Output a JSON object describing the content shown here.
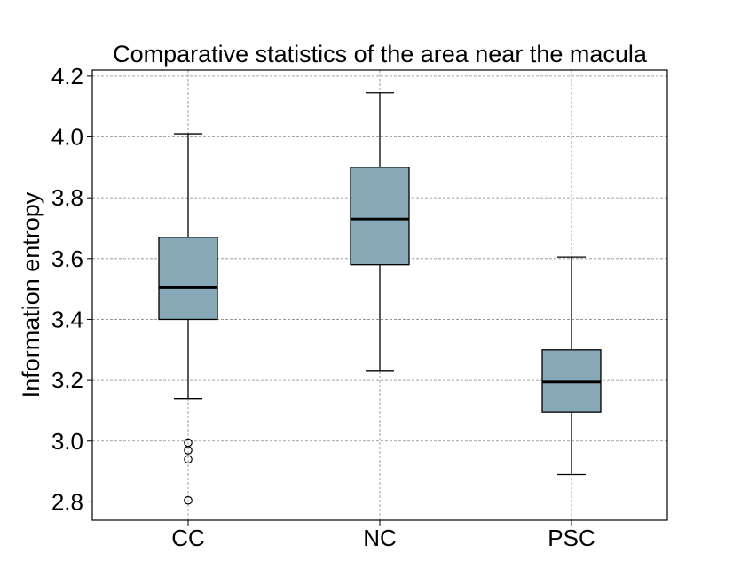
{
  "chart_data": {
    "type": "box",
    "title": "Comparative statistics of the area near the macula",
    "xlabel": "",
    "ylabel": "Information entropy",
    "ylim": [
      2.74,
      4.22
    ],
    "yticks": [
      "2.8",
      "3.0",
      "3.2",
      "3.4",
      "3.6",
      "3.8",
      "4.0",
      "4.2"
    ],
    "categories": [
      "CC",
      "NC",
      "PSC"
    ],
    "grid": true,
    "box_color": "#87a8b6",
    "boxes": [
      {
        "category": "CC",
        "whisker_low": 3.14,
        "q1": 3.4,
        "median": 3.505,
        "q3": 3.67,
        "whisker_high": 4.01,
        "outliers": [
          2.995,
          2.97,
          2.94,
          2.805
        ]
      },
      {
        "category": "NC",
        "whisker_low": 3.23,
        "q1": 3.58,
        "median": 3.73,
        "q3": 3.9,
        "whisker_high": 4.145,
        "outliers": []
      },
      {
        "category": "PSC",
        "whisker_low": 2.89,
        "q1": 3.095,
        "median": 3.195,
        "q3": 3.3,
        "whisker_high": 3.605,
        "outliers": []
      }
    ]
  }
}
